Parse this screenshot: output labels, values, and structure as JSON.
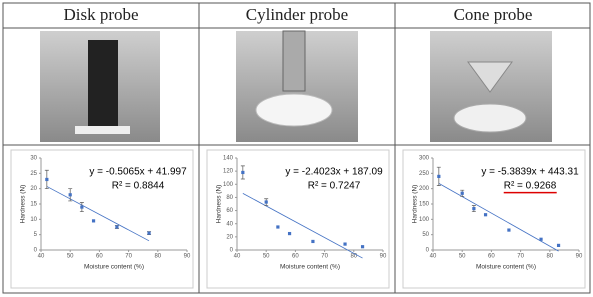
{
  "columns": [
    {
      "header": "Disk probe"
    },
    {
      "header": "Cylinder probe"
    },
    {
      "header": "Cone probe"
    }
  ],
  "chart_data": [
    {
      "type": "scatter",
      "xlabel": "Moisture content  (%)",
      "ylabel": "Hardness (N)",
      "color": "#4472c4",
      "x": [
        42,
        50,
        54,
        58,
        66,
        77
      ],
      "values": [
        23,
        18,
        14,
        9.5,
        7.5,
        5.5
      ],
      "errors": [
        3,
        2,
        1.5,
        null,
        0.5,
        0.5
      ],
      "xlim": [
        40,
        90
      ],
      "xticks": [
        40,
        50,
        60,
        70,
        80,
        90
      ],
      "ylim": [
        0,
        30
      ],
      "yticks": [
        0,
        5,
        10,
        15,
        20,
        25,
        30
      ],
      "trend": {
        "slope": -0.5065,
        "intercept": 41.997
      },
      "equation": "y = -0.5065x + 41.997",
      "r2": "R² = 0.8844",
      "trend_color": "#4472c4"
    },
    {
      "type": "scatter",
      "xlabel": "Moisture content  (%)",
      "ylabel": "Hardness (N)",
      "color": "#4472c4",
      "x": [
        42,
        50,
        54,
        58,
        66,
        77,
        83
      ],
      "values": [
        118,
        73,
        35,
        25,
        13,
        9,
        5
      ],
      "errors": [
        10,
        5,
        null,
        null,
        null,
        null,
        null
      ],
      "xlim": [
        40,
        90
      ],
      "xticks": [
        40,
        50,
        60,
        70,
        80,
        90
      ],
      "ylim": [
        0,
        140
      ],
      "yticks": [
        0,
        20,
        40,
        60,
        80,
        100,
        120,
        140
      ],
      "trend": {
        "slope": -2.4023,
        "intercept": 187.09
      },
      "equation": "y = -2.4023x + 187.09",
      "r2": "R² = 0.7247",
      "trend_color": "#4472c4"
    },
    {
      "type": "scatter",
      "xlabel": "Moisture content  (%)",
      "ylabel": "Hardness (N)",
      "color": "#4472c4",
      "x": [
        42,
        50,
        54,
        58,
        66,
        77,
        83
      ],
      "values": [
        240,
        185,
        135,
        115,
        65,
        35,
        15
      ],
      "errors": [
        30,
        10,
        10,
        null,
        null,
        null,
        null
      ],
      "xlim": [
        40,
        90
      ],
      "xticks": [
        40,
        50,
        60,
        70,
        80,
        90
      ],
      "ylim": [
        0,
        300
      ],
      "yticks": [
        0,
        50,
        100,
        150,
        200,
        250,
        300
      ],
      "trend": {
        "slope": -5.3839,
        "intercept": 443.31
      },
      "equation": "y = -5.3839x + 443.31",
      "r2": "R² = 0.9268",
      "trend_color": "#4472c4"
    }
  ]
}
